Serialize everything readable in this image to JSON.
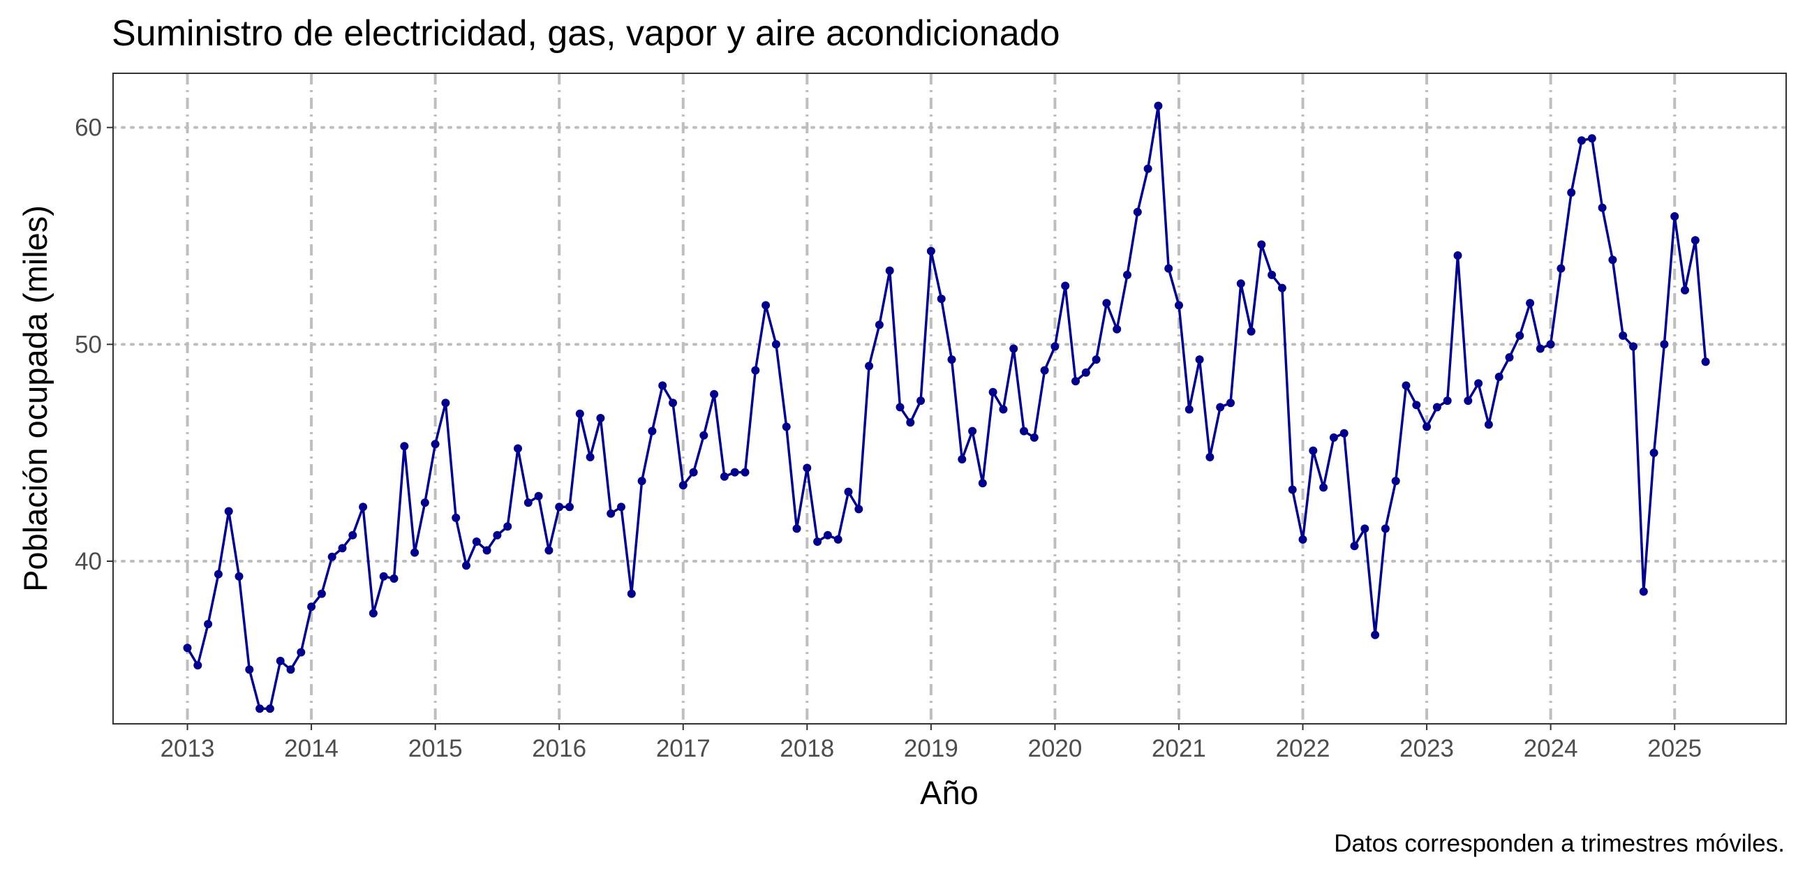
{
  "chart_data": {
    "type": "line",
    "title": "Suministro de electricidad, gas, vapor y aire acondicionado",
    "xlabel": "Año",
    "ylabel": "Población ocupada (miles)",
    "caption": "Datos corresponden a trimestres móviles.",
    "xlim": [
      2012.4,
      2025.9
    ],
    "ylim": [
      32.5,
      62.5
    ],
    "x_ticks": [
      2013,
      2014,
      2015,
      2016,
      2017,
      2018,
      2019,
      2020,
      2021,
      2022,
      2023,
      2024,
      2025
    ],
    "x_tick_labels": [
      "2013",
      "2014",
      "2015",
      "2016",
      "2017",
      "2018",
      "2019",
      "2020",
      "2021",
      "2022",
      "2023",
      "2024",
      "2025"
    ],
    "y_ticks": [
      40,
      50,
      60
    ],
    "y_tick_labels": [
      "40",
      "50",
      "60"
    ],
    "grid": true,
    "series_color": "#00008B",
    "start": {
      "year": 2013,
      "month": 1
    },
    "series": [
      {
        "values": [
          36.0,
          35.2,
          37.1,
          39.4,
          42.3,
          39.3,
          35.0,
          33.2,
          33.2,
          35.4,
          35.0,
          35.8,
          37.9,
          38.5,
          40.2,
          40.6,
          41.2,
          42.5,
          37.6,
          39.3,
          39.2,
          45.3,
          40.4,
          42.7,
          45.4,
          47.3,
          42.0,
          39.8,
          40.9,
          40.5,
          41.2,
          41.6,
          45.2,
          42.7,
          43.0,
          40.5,
          42.5,
          42.5,
          46.8,
          44.8,
          46.6,
          42.2,
          42.5,
          38.5,
          43.7,
          46.0,
          48.1,
          47.3,
          43.5,
          44.1,
          45.8,
          47.7,
          43.9,
          44.1,
          44.1,
          48.8,
          51.8,
          50.0,
          46.2,
          41.5,
          44.3,
          40.9,
          41.2,
          41.0,
          43.2,
          42.4,
          49.0,
          50.9,
          53.4,
          47.1,
          46.4,
          47.4,
          54.3,
          52.1,
          49.3,
          44.7,
          46.0,
          43.6,
          47.8,
          47.0,
          49.8,
          46.0,
          45.7,
          48.8,
          49.9,
          52.7,
          48.3,
          48.7,
          49.3,
          51.9,
          50.7,
          53.2,
          56.1,
          58.1,
          61.0,
          53.5,
          51.8,
          47.0,
          49.3,
          44.8,
          47.1,
          47.3,
          52.8,
          50.6,
          54.6,
          53.2,
          52.6,
          43.3,
          41.0,
          45.1,
          43.4,
          45.7,
          45.9,
          40.7,
          41.5,
          36.6,
          41.5,
          43.7,
          48.1,
          47.2,
          46.2,
          47.1,
          47.4,
          54.1,
          47.4,
          48.2,
          46.3,
          48.5,
          49.4,
          50.4,
          51.9,
          49.8,
          50.0,
          53.5,
          57.0,
          59.4,
          59.5,
          56.3,
          53.9,
          50.4,
          49.9,
          38.6,
          45.0,
          50.0,
          55.9,
          52.5,
          54.8,
          49.2
        ]
      }
    ]
  }
}
